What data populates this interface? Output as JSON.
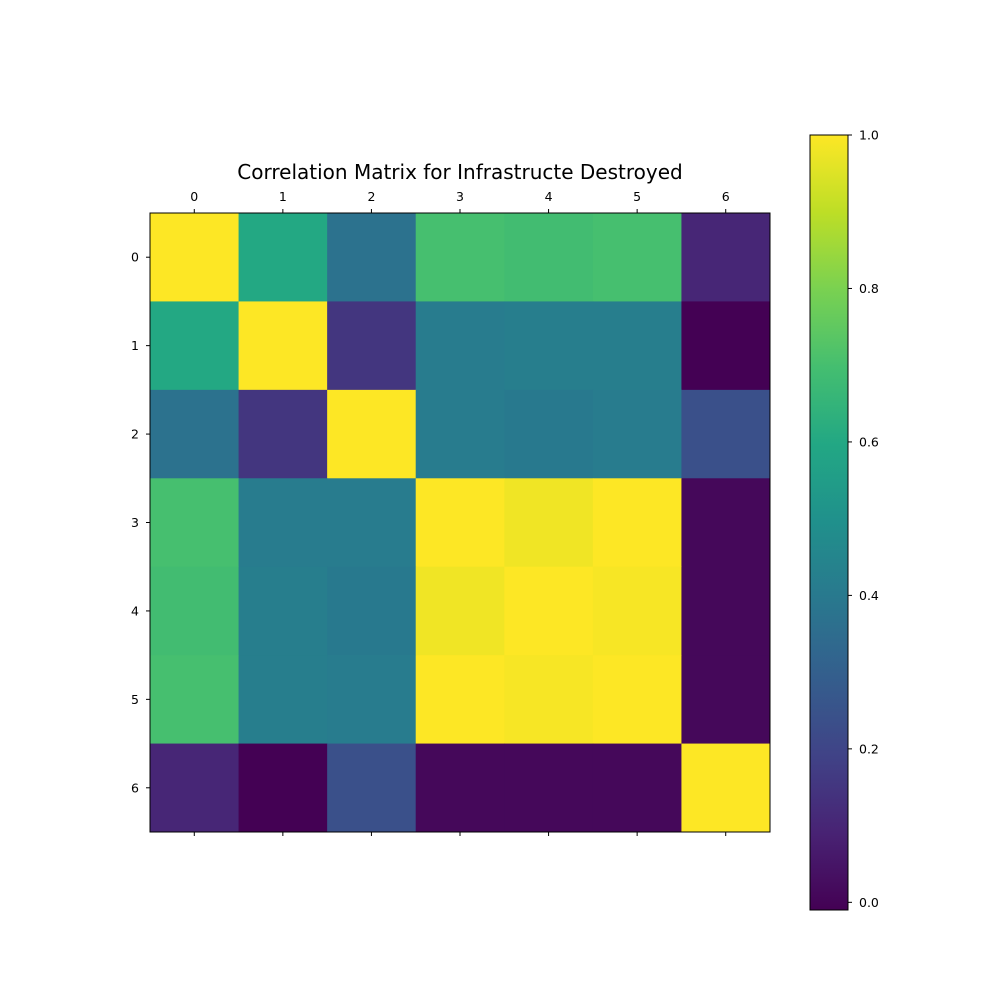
{
  "chart_data": {
    "type": "heatmap",
    "title": "Correlation Matrix for Infrastructe Destroyed",
    "row_labels": [
      "0",
      "1",
      "2",
      "3",
      "4",
      "5",
      "6"
    ],
    "col_labels": [
      "0",
      "1",
      "2",
      "3",
      "4",
      "5",
      "6"
    ],
    "values": [
      [
        1.0,
        0.6,
        0.37,
        0.7,
        0.69,
        0.7,
        0.1
      ],
      [
        0.6,
        1.0,
        0.15,
        0.41,
        0.42,
        0.42,
        -0.01
      ],
      [
        0.37,
        0.15,
        1.0,
        0.41,
        0.4,
        0.41,
        0.24
      ],
      [
        0.7,
        0.41,
        0.41,
        1.0,
        0.98,
        1.0,
        0.01
      ],
      [
        0.69,
        0.42,
        0.4,
        0.98,
        1.0,
        0.99,
        0.01
      ],
      [
        0.7,
        0.42,
        0.41,
        1.0,
        0.99,
        1.0,
        0.01
      ],
      [
        0.1,
        -0.01,
        0.24,
        0.01,
        0.01,
        0.01,
        1.0
      ]
    ],
    "colormap": "viridis",
    "colorbar": {
      "vmin": -0.01,
      "vmax": 1.0,
      "ticks": [
        0.0,
        0.2,
        0.4,
        0.6,
        0.8,
        1.0
      ],
      "tick_labels": [
        "0.0",
        "0.2",
        "0.4",
        "0.6",
        "0.8",
        "1.0"
      ]
    },
    "x_ticks_position": "top-and-bottom",
    "grid": false
  }
}
